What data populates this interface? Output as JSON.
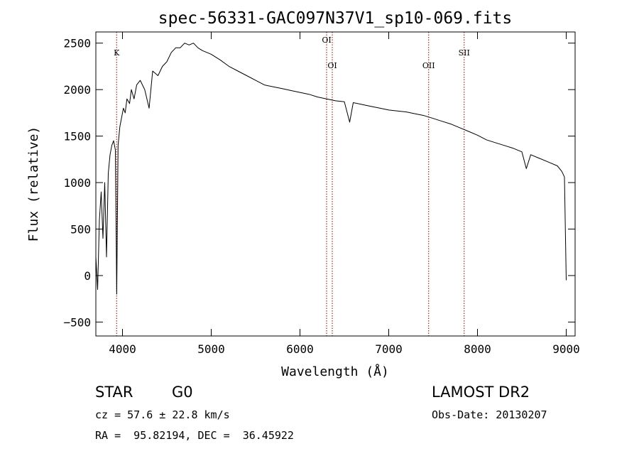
{
  "chart_data": {
    "type": "line",
    "title": "spec-56331-GAC097N37V1_sp10-069.fits",
    "xlabel": "Wavelength (Å)",
    "ylabel": "Flux (relative)",
    "xlim": [
      3700,
      9100
    ],
    "ylim": [
      -650,
      2620
    ],
    "xticks": [
      4000,
      5000,
      6000,
      7000,
      8000,
      9000
    ],
    "yticks": [
      -500,
      0,
      500,
      1000,
      1500,
      2000,
      2500
    ],
    "grid": false,
    "line_color": "#000000",
    "marker_color": "#8b0000",
    "spectral_lines": [
      {
        "label": "K",
        "wavelength": 3934
      },
      {
        "label": "OI",
        "wavelength": 6300
      },
      {
        "label": "OI",
        "wavelength": 6364
      },
      {
        "label": "OII",
        "wavelength": 7450
      },
      {
        "label": "SII",
        "wavelength": 7850
      }
    ],
    "series": [
      {
        "x": [
          3700,
          3720,
          3740,
          3760,
          3780,
          3800,
          3820,
          3840,
          3860,
          3880,
          3900,
          3920,
          3935,
          3950,
          3970,
          3990,
          4010,
          4030,
          4050,
          4080,
          4100,
          4130,
          4160,
          4200,
          4250,
          4300,
          4340,
          4400,
          4450,
          4500,
          4550,
          4600,
          4650,
          4700,
          4750,
          4800,
          4850,
          4900,
          4950,
          5000,
          5100,
          5200,
          5300,
          5400,
          5500,
          5600,
          5700,
          5800,
          5900,
          6000,
          6100,
          6200,
          6300,
          6400,
          6500,
          6560,
          6600,
          6700,
          6800,
          6900,
          7000,
          7100,
          7200,
          7300,
          7400,
          7500,
          7600,
          7700,
          7800,
          7900,
          8000,
          8100,
          8200,
          8300,
          8400,
          8500,
          8550,
          8600,
          8700,
          8800,
          8900,
          8950,
          8980,
          9000
        ],
        "y": [
          200,
          -150,
          600,
          900,
          400,
          1000,
          200,
          1100,
          1300,
          1400,
          1450,
          1350,
          -200,
          1400,
          1600,
          1700,
          1800,
          1750,
          1900,
          1850,
          2000,
          1900,
          2050,
          2100,
          2000,
          1800,
          2200,
          2150,
          2250,
          2300,
          2400,
          2450,
          2450,
          2500,
          2480,
          2500,
          2450,
          2420,
          2400,
          2380,
          2320,
          2250,
          2200,
          2150,
          2100,
          2050,
          2030,
          2010,
          1990,
          1970,
          1950,
          1920,
          1900,
          1880,
          1870,
          1650,
          1860,
          1840,
          1820,
          1800,
          1780,
          1770,
          1760,
          1740,
          1720,
          1690,
          1660,
          1630,
          1590,
          1550,
          1510,
          1460,
          1430,
          1400,
          1370,
          1330,
          1150,
          1300,
          1260,
          1220,
          1180,
          1120,
          1060,
          -50
        ]
      }
    ]
  },
  "info": {
    "object_type": "STAR",
    "subclass": "G0",
    "survey": "LAMOST DR2",
    "cz": "cz = 57.6 ± 22.8 km/s",
    "obs_date": "Obs-Date: 20130207",
    "coords": "RA =  95.82194, DEC =  36.45922"
  }
}
